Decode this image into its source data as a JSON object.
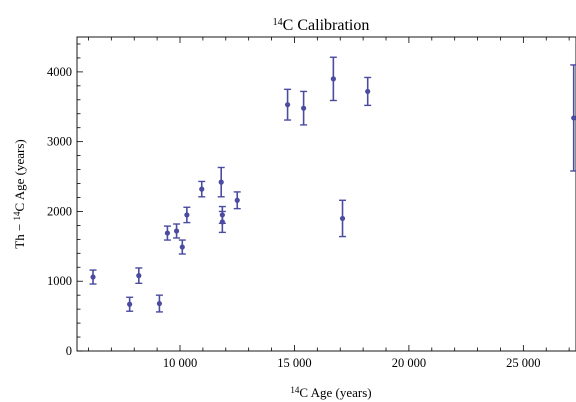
{
  "chart_data": {
    "type": "scatter",
    "title": {
      "sup": "14",
      "text": "C Calibration"
    },
    "xlabel": {
      "sup": "14",
      "text": "C Age (years)"
    },
    "ylabel": {
      "prefix": "Th − ",
      "sup": "14",
      "text": "C Age (years)"
    },
    "xlim": [
      5500,
      27300
    ],
    "ylim": [
      0,
      4500
    ],
    "x_ticks": [
      10000,
      15000,
      20000,
      25000
    ],
    "x_tick_labels": [
      "10 000",
      "15 000",
      "20 000",
      "25 000"
    ],
    "y_ticks": [
      0,
      1000,
      2000,
      3000,
      4000
    ],
    "y_tick_labels": [
      "0",
      "1000",
      "2000",
      "3000",
      "4000"
    ],
    "grid": false,
    "legend": "none",
    "color": "#4b4ba0",
    "series": [
      {
        "points": [
          {
            "x": 6200,
            "y": 1060,
            "err": 100
          },
          {
            "x": 7800,
            "y": 670,
            "err": 100
          },
          {
            "x": 8200,
            "y": 1080,
            "err": 110
          },
          {
            "x": 9100,
            "y": 680,
            "err": 120
          },
          {
            "x": 9450,
            "y": 1690,
            "err": 100
          },
          {
            "x": 9850,
            "y": 1720,
            "err": 100
          },
          {
            "x": 10100,
            "y": 1490,
            "err": 100
          },
          {
            "x": 10300,
            "y": 1950,
            "err": 110
          },
          {
            "x": 10950,
            "y": 2320,
            "err": 110
          },
          {
            "x": 11800,
            "y": 2420,
            "err": 210
          },
          {
            "x": 11850,
            "y": 1950,
            "err": 120
          },
          {
            "x": 11850,
            "y": 1850,
            "err": 150
          },
          {
            "x": 12500,
            "y": 2160,
            "err": 120
          },
          {
            "x": 14700,
            "y": 3530,
            "err": 220
          },
          {
            "x": 15400,
            "y": 3480,
            "err": 240
          },
          {
            "x": 16700,
            "y": 3900,
            "err": 310
          },
          {
            "x": 17100,
            "y": 1900,
            "err": 260
          },
          {
            "x": 18200,
            "y": 3720,
            "err": 200
          },
          {
            "x": 27200,
            "y": 3340,
            "err": 760
          }
        ]
      }
    ]
  }
}
